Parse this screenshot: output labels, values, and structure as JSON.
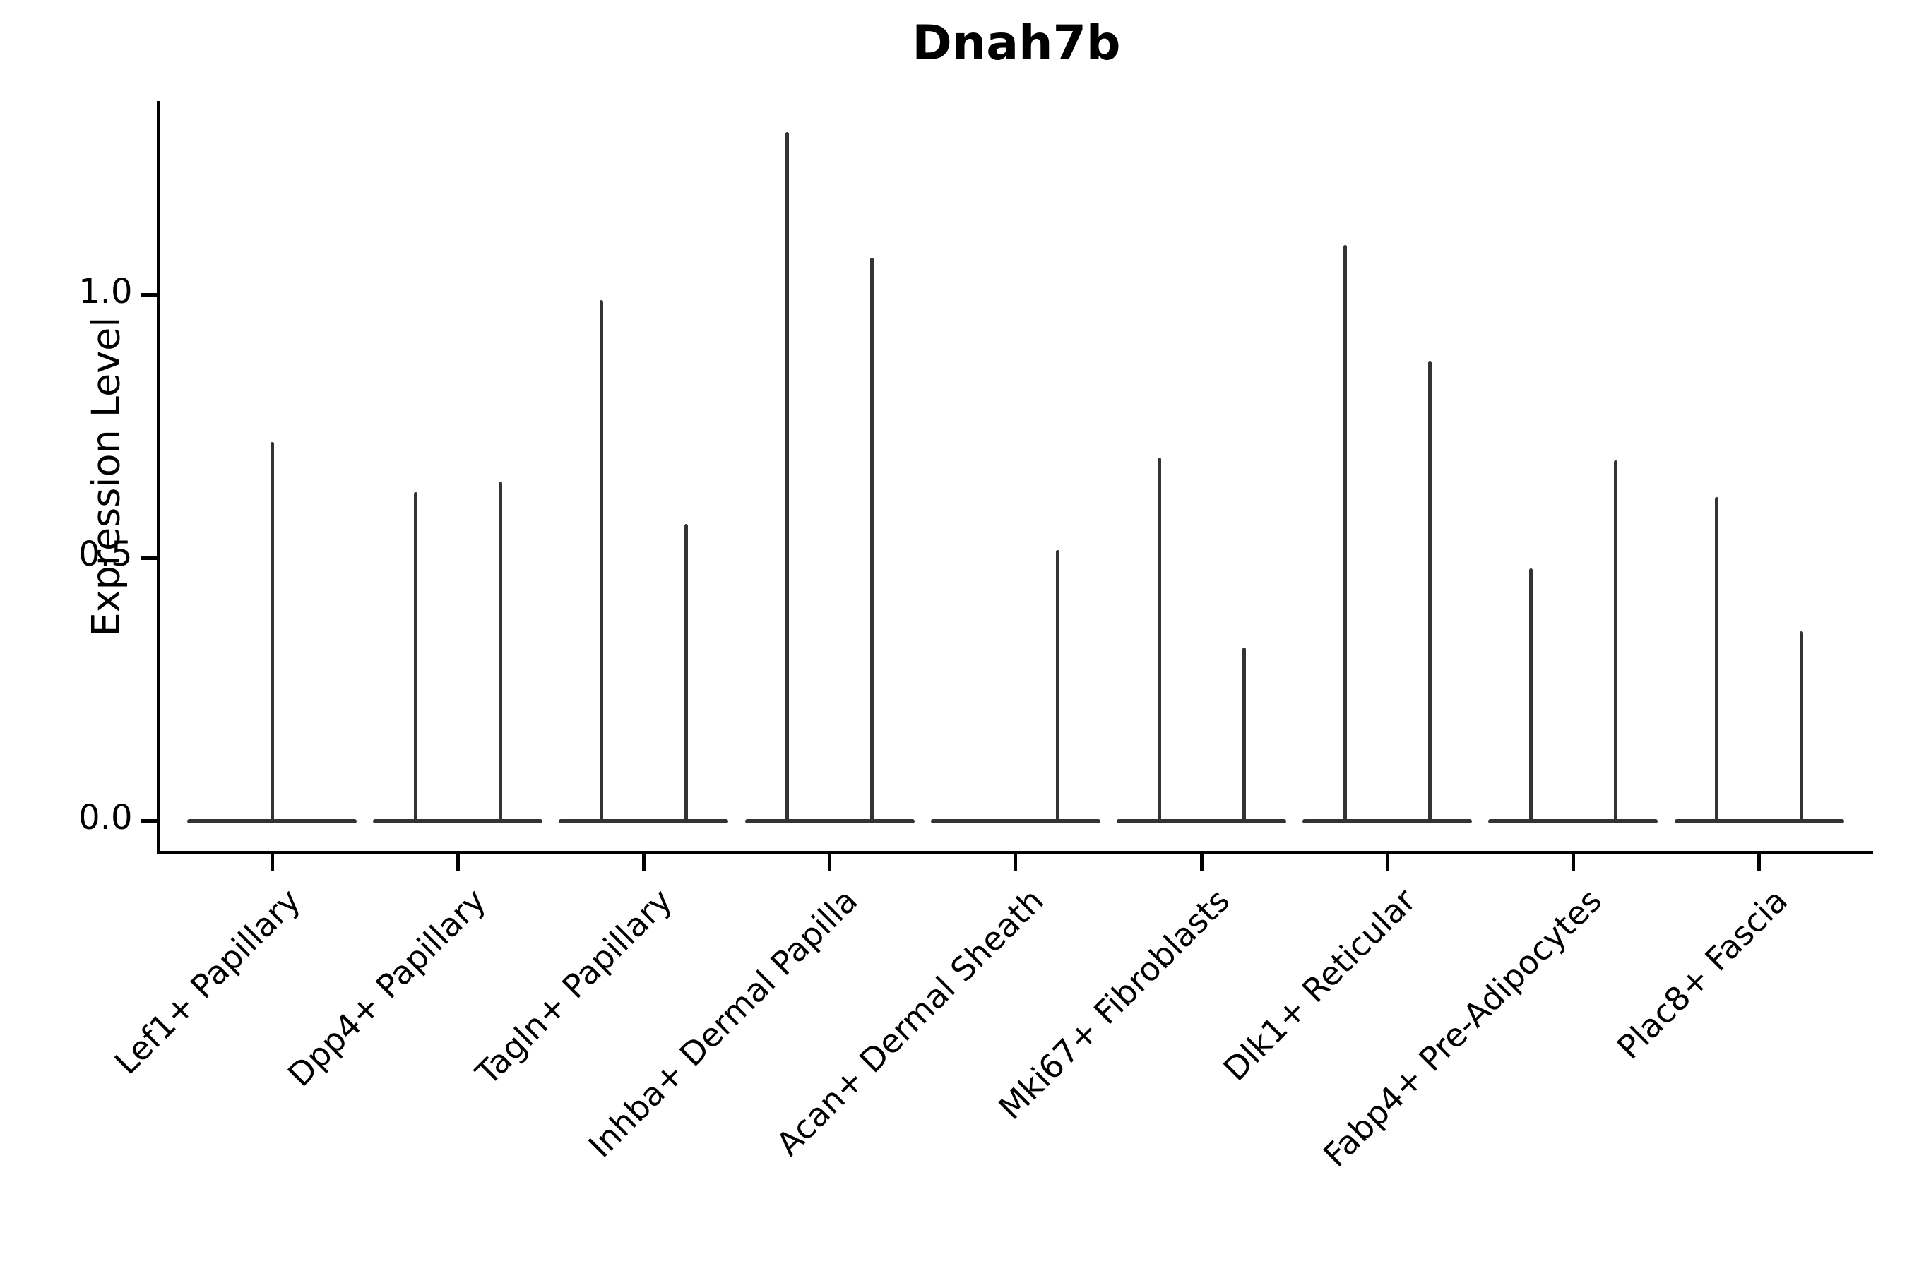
{
  "chart_data": {
    "type": "violin",
    "title": "Dnah7b",
    "ylabel": "Expression Level",
    "xlabel": "",
    "legend": "none",
    "grid": false,
    "ylim": [
      -0.06,
      1.37
    ],
    "yticks": [
      {
        "label": "0.0",
        "value": 0.0
      },
      {
        "label": "0.5",
        "value": 0.5
      },
      {
        "label": "1.0",
        "value": 1.0
      }
    ],
    "line_color": "#333333",
    "axis_color": "#000000",
    "categories": [
      "Lef1+ Papillary",
      "Dpp4+ Papillary",
      "Tagln+ Papillary",
      "Inhba+ Dermal Papilla",
      "Acan+ Dermal Sheath",
      "Mki67+ Fibroblasts",
      "Dlk1+ Reticular",
      "Fabp4+ Pre-Adipocytes",
      "Plac8+ Fascia"
    ],
    "violins": [
      {
        "category": "Lef1+ Papillary",
        "baseline_value": 0.0,
        "spikes": [
          {
            "dx": 0.0,
            "max": 0.72
          }
        ]
      },
      {
        "category": "Dpp4+ Papillary",
        "baseline_value": 0.0,
        "spikes": [
          {
            "dx": -0.25,
            "max": 0.625
          },
          {
            "dx": 0.25,
            "max": 0.645
          }
        ]
      },
      {
        "category": "Tagln+ Papillary",
        "baseline_value": 0.0,
        "spikes": [
          {
            "dx": -0.25,
            "max": 0.99
          },
          {
            "dx": 0.25,
            "max": 0.565
          }
        ]
      },
      {
        "category": "Inhba+ Dermal Papilla",
        "baseline_value": 0.0,
        "spikes": [
          {
            "dx": -0.25,
            "max": 1.31
          },
          {
            "dx": 0.25,
            "max": 1.07
          }
        ]
      },
      {
        "category": "Acan+ Dermal Sheath",
        "baseline_value": 0.0,
        "spikes": [
          {
            "dx": 0.25,
            "max": 0.515
          }
        ]
      },
      {
        "category": "Mki67+ Fibroblasts",
        "baseline_value": 0.0,
        "spikes": [
          {
            "dx": -0.25,
            "max": 0.69
          },
          {
            "dx": 0.25,
            "max": 0.33
          }
        ]
      },
      {
        "category": "Dlk1+ Reticular",
        "baseline_value": 0.0,
        "spikes": [
          {
            "dx": -0.25,
            "max": 1.095
          },
          {
            "dx": 0.25,
            "max": 0.875
          }
        ]
      },
      {
        "category": "Fabp4+ Pre-Adipocytes",
        "baseline_value": 0.0,
        "spikes": [
          {
            "dx": -0.25,
            "max": 0.48
          },
          {
            "dx": 0.25,
            "max": 0.685
          }
        ]
      },
      {
        "category": "Plac8+ Fascia",
        "baseline_value": 0.0,
        "spikes": [
          {
            "dx": -0.25,
            "max": 0.615
          },
          {
            "dx": 0.25,
            "max": 0.36
          }
        ]
      }
    ]
  }
}
